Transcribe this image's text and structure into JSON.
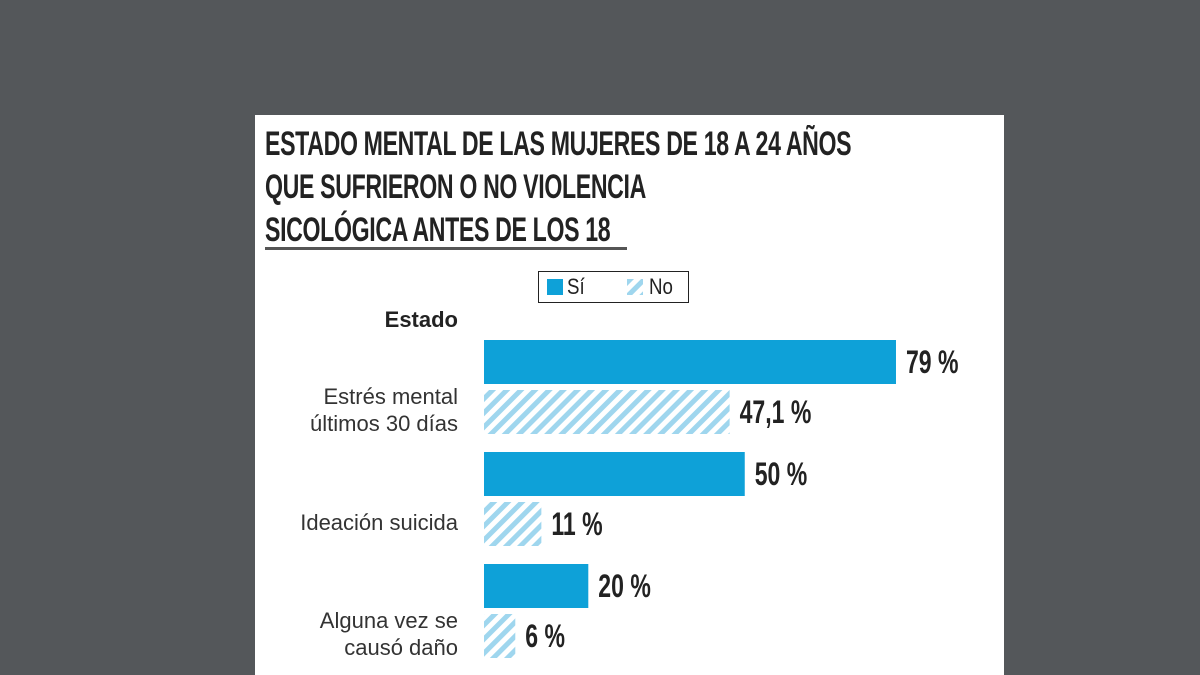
{
  "chart_data": {
    "type": "hbar",
    "title": "ESTADO MENTAL DE LAS MUJERES DE 18 A 24 AÑOS\nQUE SUFRIERON O NO VIOLENCIA\nSICOLÓGICA ANTES DE LOS 18",
    "category_header": "Estado",
    "categories": [
      "Estrés mental\núltimos 30 días",
      "Ideación suicida",
      "Alguna vez se\ncausó daño"
    ],
    "series": [
      {
        "name": "Sí",
        "color": "#0ea1d8",
        "values": [
          79,
          50,
          20
        ],
        "value_labels": [
          "79 %",
          "50 %",
          "20 %"
        ]
      },
      {
        "name": "No",
        "color": "#9fd6ee",
        "hatched": true,
        "values": [
          47.1,
          11,
          6
        ],
        "value_labels": [
          "47,1 %",
          "11 %",
          "6 %"
        ]
      }
    ]
  }
}
